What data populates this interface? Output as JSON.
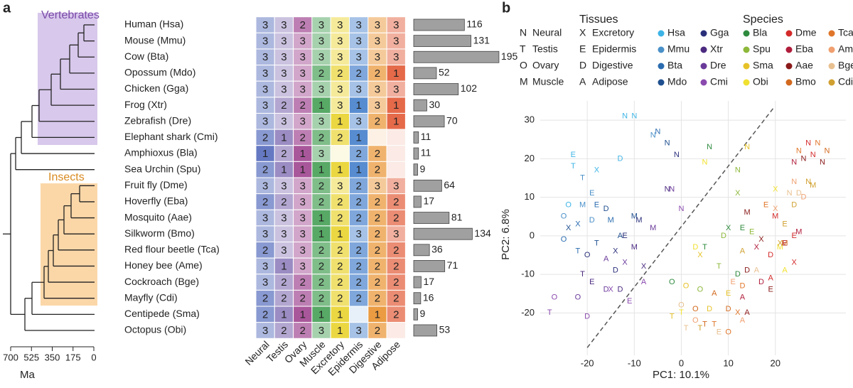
{
  "chart_data": [
    {
      "type": "heatmap",
      "panel_label": "a",
      "groups": [
        "Vertebrates",
        "Insects"
      ],
      "rows": [
        "Human (Hsa)",
        "Mouse (Mmu)",
        "Cow (Bta)",
        "Opossum (Mdo)",
        "Chicken (Gga)",
        "Frog (Xtr)",
        "Zebrafish (Dre)",
        "Elephant shark (Cmi)",
        "Amphioxus (Bla)",
        "Sea Urchin (Spu)",
        "Fruit fly (Dme)",
        "Hoverfly (Eba)",
        "Mosquito (Aae)",
        "Silkworm (Bmo)",
        "Red flour beetle (Tca)",
        "Honey bee (Ame)",
        "Cockroach (Bge)",
        "Mayfly (Cdi)",
        "Centipede (Sma)",
        "Octopus (Obi)"
      ],
      "columns": [
        "Neural",
        "Testis",
        "Ovary",
        "Muscle",
        "Excretory",
        "Epidermis",
        "Digestive",
        "Adipose"
      ],
      "colors": [
        "#4a62b8",
        "#8a78b8",
        "#9a3a8a",
        "#3a9a4a",
        "#e8d020",
        "#3a78c8",
        "#e88a20",
        "#e0502a"
      ],
      "values": [
        [
          3,
          3,
          2,
          3,
          3,
          3,
          3,
          3
        ],
        [
          3,
          3,
          3,
          3,
          3,
          3,
          3,
          3
        ],
        [
          3,
          3,
          3,
          3,
          3,
          3,
          3,
          3
        ],
        [
          3,
          3,
          3,
          2,
          2,
          2,
          2,
          1
        ],
        [
          3,
          3,
          3,
          3,
          3,
          3,
          3,
          3
        ],
        [
          3,
          2,
          2,
          1,
          3,
          1,
          3,
          1
        ],
        [
          3,
          3,
          3,
          3,
          1,
          3,
          2,
          1
        ],
        [
          2,
          1,
          2,
          2,
          2,
          1,
          null,
          null
        ],
        [
          1,
          2,
          1,
          3,
          null,
          2,
          2,
          null
        ],
        [
          2,
          1,
          1,
          1,
          1,
          1,
          2,
          null
        ],
        [
          3,
          3,
          3,
          2,
          3,
          2,
          3,
          3
        ],
        [
          2,
          2,
          3,
          2,
          2,
          2,
          2,
          2
        ],
        [
          3,
          3,
          3,
          1,
          2,
          2,
          2,
          2
        ],
        [
          3,
          3,
          3,
          1,
          1,
          3,
          2,
          3
        ],
        [
          2,
          3,
          3,
          2,
          2,
          2,
          2,
          2
        ],
        [
          3,
          1,
          3,
          2,
          2,
          2,
          2,
          2
        ],
        [
          3,
          2,
          2,
          2,
          2,
          2,
          2,
          2
        ],
        [
          2,
          2,
          2,
          2,
          2,
          2,
          2,
          2
        ],
        [
          2,
          1,
          1,
          1,
          1,
          null,
          1,
          2
        ],
        [
          3,
          2,
          2,
          3,
          1,
          3,
          2,
          null
        ]
      ],
      "bar_values": [
        116,
        131,
        195,
        52,
        102,
        30,
        70,
        11,
        11,
        9,
        64,
        17,
        81,
        134,
        36,
        71,
        17,
        16,
        9,
        53
      ],
      "bar_color": "#a0a0a0",
      "tree_axis_label": "Ma",
      "xlim": [
        700,
        0
      ],
      "xticks": [
        700,
        525,
        350,
        175,
        0
      ]
    },
    {
      "type": "scatter",
      "panel_label": "b",
      "tissue_legend_title": "Tissues",
      "species_legend_title": "Species",
      "tissue_codes": [
        {
          "code": "N",
          "name": "Neural"
        },
        {
          "code": "T",
          "name": "Testis"
        },
        {
          "code": "O",
          "name": "Ovary"
        },
        {
          "code": "M",
          "name": "Muscle"
        },
        {
          "code": "X",
          "name": "Excretory"
        },
        {
          "code": "E",
          "name": "Epidermis"
        },
        {
          "code": "D",
          "name": "Digestive"
        },
        {
          "code": "A",
          "name": "Adipose"
        }
      ],
      "xlabel": "PC1: 10.1%",
      "ylabel": "PC2: 6.8%",
      "xlim": [
        -30,
        35
      ],
      "ylim": [
        -31,
        35
      ],
      "xticks": [
        -20,
        -10,
        0,
        10,
        20
      ],
      "yticks": [
        -20,
        -10,
        0,
        10,
        20,
        30
      ],
      "grid": true,
      "divider": {
        "x": [
          -20,
          19.5
        ],
        "y": [
          -29,
          33
        ],
        "color": "#555555"
      },
      "series": [
        {
          "name": "Hsa",
          "color": "#3eb4e6",
          "x": [
            -12,
            -10,
            -23,
            -23,
            -13,
            -24,
            -18
          ],
          "y": [
            31,
            31,
            18,
            21,
            20,
            8,
            17
          ],
          "labels": [
            "N",
            "N",
            "T",
            "E",
            "D",
            "O",
            "X"
          ]
        },
        {
          "name": "Mmu",
          "color": "#4a90c8",
          "x": [
            -6,
            -25,
            -21,
            -21,
            -19,
            -19
          ],
          "y": [
            26,
            5,
            15,
            8,
            11,
            4
          ],
          "labels": [
            "N",
            "O",
            "T",
            "M",
            "E",
            "D"
          ]
        },
        {
          "name": "Bta",
          "color": "#2b6cb0",
          "x": [
            -5,
            -22,
            -22,
            -25,
            -15,
            -18
          ],
          "y": [
            27,
            3,
            -4,
            -1,
            4,
            8
          ],
          "labels": [
            "N",
            "X",
            "T",
            "O",
            "M",
            "E"
          ]
        },
        {
          "name": "Mdo",
          "color": "#1f4f8f",
          "x": [
            -3,
            -24,
            -16,
            -10,
            -18,
            -13
          ],
          "y": [
            24,
            2,
            7,
            5,
            -2,
            0
          ],
          "labels": [
            "N",
            "X",
            "D",
            "M",
            "T",
            "A"
          ]
        },
        {
          "name": "Gga",
          "color": "#2a2f7a",
          "x": [
            -1,
            -9,
            -12,
            -14,
            -14,
            -20
          ],
          "y": [
            21,
            4,
            0,
            -4,
            -9,
            -5
          ],
          "labels": [
            "N",
            "M",
            "E",
            "X",
            "D",
            "O"
          ]
        },
        {
          "name": "Xtr",
          "color": "#4b2a80",
          "x": [
            -3,
            -10,
            -8,
            -13,
            -19,
            -21
          ],
          "y": [
            12,
            -3,
            -8,
            -14,
            -12,
            -10
          ],
          "labels": [
            "N",
            "M",
            "X",
            "D",
            "E",
            "T"
          ]
        },
        {
          "name": "Dre",
          "color": "#6a3a9a",
          "x": [
            -2,
            -22,
            -12,
            -6,
            -16,
            -16
          ],
          "y": [
            12,
            -16,
            -7,
            2,
            -14,
            -6
          ],
          "labels": [
            "N",
            "O",
            "X",
            "M",
            "D",
            "A"
          ]
        },
        {
          "name": "Cmi",
          "color": "#8a4aae",
          "x": [
            0,
            -15,
            -27,
            -28,
            -20,
            -11,
            -8
          ],
          "y": [
            7,
            -14,
            -16,
            -20,
            -21,
            -17,
            -12
          ],
          "labels": [
            "N",
            "X",
            "O",
            "T",
            "D",
            "E",
            "A"
          ]
        },
        {
          "name": "Bla",
          "color": "#2e8b3e",
          "x": [
            6,
            10,
            -2,
            5,
            13,
            12
          ],
          "y": [
            23,
            2,
            -12,
            -3,
            2,
            -10
          ],
          "labels": [
            "N",
            "X",
            "O",
            "T",
            "E",
            "D"
          ]
        },
        {
          "name": "Spu",
          "color": "#8db83a",
          "x": [
            12,
            9,
            8,
            12,
            15,
            4
          ],
          "y": [
            17,
            0,
            -8,
            11,
            1,
            -14
          ],
          "labels": [
            "N",
            "D",
            "T",
            "X",
            "E",
            "O"
          ]
        },
        {
          "name": "Sma",
          "color": "#e6c228",
          "x": [
            14,
            4,
            6,
            -2,
            1,
            10
          ],
          "y": [
            23,
            -5,
            -19,
            -21,
            -13,
            -15
          ],
          "labels": [
            "N",
            "X",
            "D",
            "T",
            "O",
            "E"
          ]
        },
        {
          "name": "Obi",
          "color": "#f0e030",
          "x": [
            5,
            20,
            21,
            22,
            3,
            0
          ],
          "y": [
            19,
            12,
            -3,
            -9,
            -3,
            -20
          ],
          "labels": [
            "N",
            "X",
            "M",
            "A",
            "D",
            "T"
          ]
        },
        {
          "name": "Dme",
          "color": "#d42a2a",
          "x": [
            27,
            28,
            20,
            24,
            19,
            24,
            19
          ],
          "y": [
            24,
            21,
            5,
            0,
            -5,
            -7,
            -11
          ],
          "labels": [
            "N",
            "N",
            "M",
            "E",
            "D",
            "X",
            "A"
          ]
        },
        {
          "name": "Eba",
          "color": "#b01c3a",
          "x": [
            24,
            25,
            22,
            17,
            16,
            13
          ],
          "y": [
            19,
            1,
            -2,
            -12,
            -3,
            -16
          ],
          "labels": [
            "N",
            "M",
            "E",
            "D",
            "X",
            "A"
          ]
        },
        {
          "name": "Aae",
          "color": "#8a1a1a",
          "x": [
            30,
            26,
            14,
            17,
            14,
            19,
            14
          ],
          "y": [
            19,
            20,
            6,
            -1,
            -9,
            -14,
            -20
          ],
          "labels": [
            "N",
            "N",
            "M",
            "X",
            "D",
            "E",
            "A"
          ]
        },
        {
          "name": "Bmo",
          "color": "#d2691e",
          "x": [
            31,
            22,
            10,
            5,
            3,
            7
          ],
          "y": [
            22,
            -2,
            -19,
            -23,
            -19,
            -15
          ],
          "labels": [
            "N",
            "M",
            "D",
            "T",
            "O",
            "A"
          ]
        },
        {
          "name": "Tca",
          "color": "#e0762a",
          "x": [
            29,
            25,
            18,
            13,
            7,
            10,
            12
          ],
          "y": [
            24,
            22,
            8,
            -13,
            -23,
            -25,
            -20
          ],
          "labels": [
            "N",
            "N",
            "E",
            "D",
            "T",
            "O",
            "X"
          ]
        },
        {
          "name": "Ame",
          "color": "#f0a070",
          "x": [
            24,
            26,
            20,
            13,
            3,
            11
          ],
          "y": [
            14,
            10,
            7,
            -22,
            -22,
            -12
          ],
          "labels": [
            "N",
            "D",
            "X",
            "A",
            "O",
            "E"
          ]
        },
        {
          "name": "Bge",
          "color": "#e8c090",
          "x": [
            23,
            25,
            16,
            1,
            0,
            8
          ],
          "y": [
            11,
            11,
            -9,
            -24,
            -18,
            -25
          ],
          "labels": [
            "N",
            "D",
            "A",
            "T",
            "O",
            "E"
          ]
        },
        {
          "name": "Cdi",
          "color": "#d0a030",
          "x": [
            27,
            28,
            24,
            21,
            13,
            22,
            4
          ],
          "y": [
            14,
            13,
            8,
            -2,
            -4,
            3,
            -24
          ],
          "labels": [
            "N",
            "M",
            "D",
            "X",
            "A",
            "E",
            "T"
          ]
        }
      ]
    }
  ]
}
